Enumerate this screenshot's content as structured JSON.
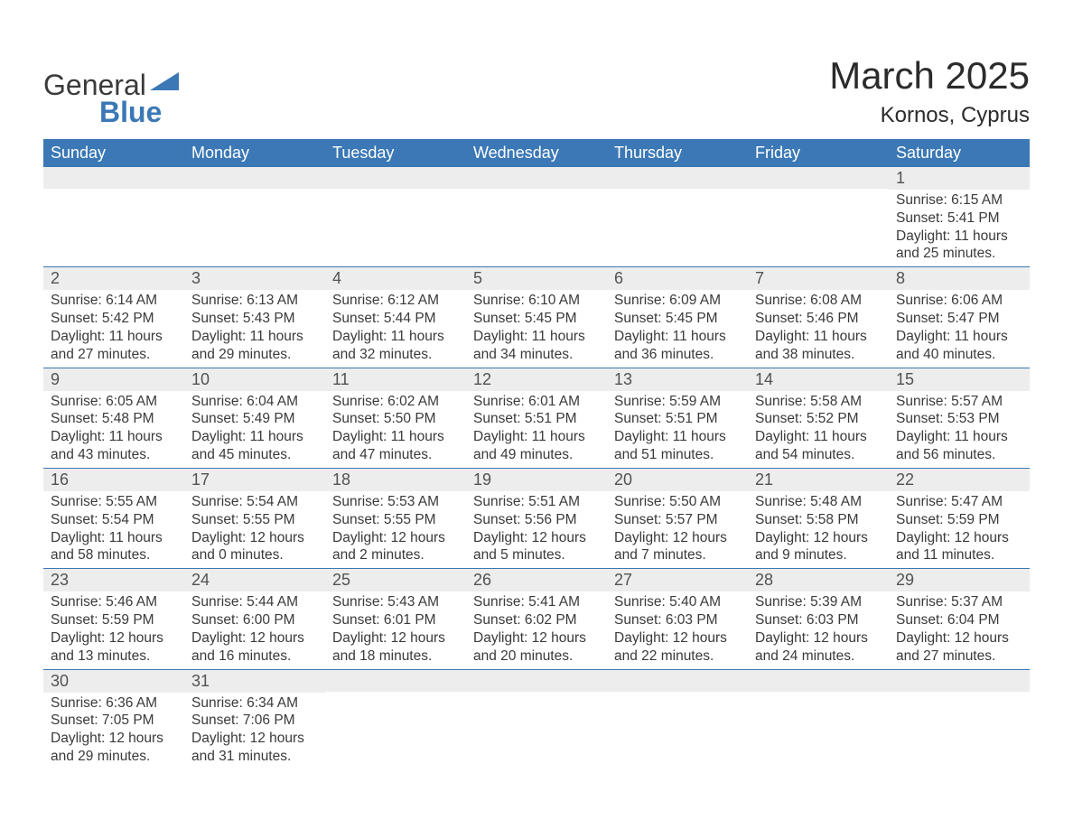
{
  "logo": {
    "text_general": "General",
    "text_blue": "Blue",
    "triangle_color": "#3b78b5"
  },
  "header": {
    "title": "March 2025",
    "subtitle": "Kornos, Cyprus"
  },
  "colors": {
    "header_bg": "#3b78b5",
    "header_fg": "#ffffff",
    "daynum_bg": "#ededed",
    "row_border": "#3b78b5",
    "text": "#3a3a3a",
    "background": "#ffffff"
  },
  "fonts": {
    "family": "Arial",
    "title_size": 42,
    "subtitle_size": 24,
    "dayhead_size": 18,
    "daynum_size": 18,
    "body_size": 15.5
  },
  "calendar": {
    "type": "calendar-table",
    "columns": [
      "Sunday",
      "Monday",
      "Tuesday",
      "Wednesday",
      "Thursday",
      "Friday",
      "Saturday"
    ],
    "weeks": [
      [
        {
          "day": "",
          "sunrise": "",
          "sunset": "",
          "daylight": ""
        },
        {
          "day": "",
          "sunrise": "",
          "sunset": "",
          "daylight": ""
        },
        {
          "day": "",
          "sunrise": "",
          "sunset": "",
          "daylight": ""
        },
        {
          "day": "",
          "sunrise": "",
          "sunset": "",
          "daylight": ""
        },
        {
          "day": "",
          "sunrise": "",
          "sunset": "",
          "daylight": ""
        },
        {
          "day": "",
          "sunrise": "",
          "sunset": "",
          "daylight": ""
        },
        {
          "day": "1",
          "sunrise": "Sunrise: 6:15 AM",
          "sunset": "Sunset: 5:41 PM",
          "daylight": "Daylight: 11 hours and 25 minutes."
        }
      ],
      [
        {
          "day": "2",
          "sunrise": "Sunrise: 6:14 AM",
          "sunset": "Sunset: 5:42 PM",
          "daylight": "Daylight: 11 hours and 27 minutes."
        },
        {
          "day": "3",
          "sunrise": "Sunrise: 6:13 AM",
          "sunset": "Sunset: 5:43 PM",
          "daylight": "Daylight: 11 hours and 29 minutes."
        },
        {
          "day": "4",
          "sunrise": "Sunrise: 6:12 AM",
          "sunset": "Sunset: 5:44 PM",
          "daylight": "Daylight: 11 hours and 32 minutes."
        },
        {
          "day": "5",
          "sunrise": "Sunrise: 6:10 AM",
          "sunset": "Sunset: 5:45 PM",
          "daylight": "Daylight: 11 hours and 34 minutes."
        },
        {
          "day": "6",
          "sunrise": "Sunrise: 6:09 AM",
          "sunset": "Sunset: 5:45 PM",
          "daylight": "Daylight: 11 hours and 36 minutes."
        },
        {
          "day": "7",
          "sunrise": "Sunrise: 6:08 AM",
          "sunset": "Sunset: 5:46 PM",
          "daylight": "Daylight: 11 hours and 38 minutes."
        },
        {
          "day": "8",
          "sunrise": "Sunrise: 6:06 AM",
          "sunset": "Sunset: 5:47 PM",
          "daylight": "Daylight: 11 hours and 40 minutes."
        }
      ],
      [
        {
          "day": "9",
          "sunrise": "Sunrise: 6:05 AM",
          "sunset": "Sunset: 5:48 PM",
          "daylight": "Daylight: 11 hours and 43 minutes."
        },
        {
          "day": "10",
          "sunrise": "Sunrise: 6:04 AM",
          "sunset": "Sunset: 5:49 PM",
          "daylight": "Daylight: 11 hours and 45 minutes."
        },
        {
          "day": "11",
          "sunrise": "Sunrise: 6:02 AM",
          "sunset": "Sunset: 5:50 PM",
          "daylight": "Daylight: 11 hours and 47 minutes."
        },
        {
          "day": "12",
          "sunrise": "Sunrise: 6:01 AM",
          "sunset": "Sunset: 5:51 PM",
          "daylight": "Daylight: 11 hours and 49 minutes."
        },
        {
          "day": "13",
          "sunrise": "Sunrise: 5:59 AM",
          "sunset": "Sunset: 5:51 PM",
          "daylight": "Daylight: 11 hours and 51 minutes."
        },
        {
          "day": "14",
          "sunrise": "Sunrise: 5:58 AM",
          "sunset": "Sunset: 5:52 PM",
          "daylight": "Daylight: 11 hours and 54 minutes."
        },
        {
          "day": "15",
          "sunrise": "Sunrise: 5:57 AM",
          "sunset": "Sunset: 5:53 PM",
          "daylight": "Daylight: 11 hours and 56 minutes."
        }
      ],
      [
        {
          "day": "16",
          "sunrise": "Sunrise: 5:55 AM",
          "sunset": "Sunset: 5:54 PM",
          "daylight": "Daylight: 11 hours and 58 minutes."
        },
        {
          "day": "17",
          "sunrise": "Sunrise: 5:54 AM",
          "sunset": "Sunset: 5:55 PM",
          "daylight": "Daylight: 12 hours and 0 minutes."
        },
        {
          "day": "18",
          "sunrise": "Sunrise: 5:53 AM",
          "sunset": "Sunset: 5:55 PM",
          "daylight": "Daylight: 12 hours and 2 minutes."
        },
        {
          "day": "19",
          "sunrise": "Sunrise: 5:51 AM",
          "sunset": "Sunset: 5:56 PM",
          "daylight": "Daylight: 12 hours and 5 minutes."
        },
        {
          "day": "20",
          "sunrise": "Sunrise: 5:50 AM",
          "sunset": "Sunset: 5:57 PM",
          "daylight": "Daylight: 12 hours and 7 minutes."
        },
        {
          "day": "21",
          "sunrise": "Sunrise: 5:48 AM",
          "sunset": "Sunset: 5:58 PM",
          "daylight": "Daylight: 12 hours and 9 minutes."
        },
        {
          "day": "22",
          "sunrise": "Sunrise: 5:47 AM",
          "sunset": "Sunset: 5:59 PM",
          "daylight": "Daylight: 12 hours and 11 minutes."
        }
      ],
      [
        {
          "day": "23",
          "sunrise": "Sunrise: 5:46 AM",
          "sunset": "Sunset: 5:59 PM",
          "daylight": "Daylight: 12 hours and 13 minutes."
        },
        {
          "day": "24",
          "sunrise": "Sunrise: 5:44 AM",
          "sunset": "Sunset: 6:00 PM",
          "daylight": "Daylight: 12 hours and 16 minutes."
        },
        {
          "day": "25",
          "sunrise": "Sunrise: 5:43 AM",
          "sunset": "Sunset: 6:01 PM",
          "daylight": "Daylight: 12 hours and 18 minutes."
        },
        {
          "day": "26",
          "sunrise": "Sunrise: 5:41 AM",
          "sunset": "Sunset: 6:02 PM",
          "daylight": "Daylight: 12 hours and 20 minutes."
        },
        {
          "day": "27",
          "sunrise": "Sunrise: 5:40 AM",
          "sunset": "Sunset: 6:03 PM",
          "daylight": "Daylight: 12 hours and 22 minutes."
        },
        {
          "day": "28",
          "sunrise": "Sunrise: 5:39 AM",
          "sunset": "Sunset: 6:03 PM",
          "daylight": "Daylight: 12 hours and 24 minutes."
        },
        {
          "day": "29",
          "sunrise": "Sunrise: 5:37 AM",
          "sunset": "Sunset: 6:04 PM",
          "daylight": "Daylight: 12 hours and 27 minutes."
        }
      ],
      [
        {
          "day": "30",
          "sunrise": "Sunrise: 6:36 AM",
          "sunset": "Sunset: 7:05 PM",
          "daylight": "Daylight: 12 hours and 29 minutes."
        },
        {
          "day": "31",
          "sunrise": "Sunrise: 6:34 AM",
          "sunset": "Sunset: 7:06 PM",
          "daylight": "Daylight: 12 hours and 31 minutes."
        },
        {
          "day": "",
          "sunrise": "",
          "sunset": "",
          "daylight": ""
        },
        {
          "day": "",
          "sunrise": "",
          "sunset": "",
          "daylight": ""
        },
        {
          "day": "",
          "sunrise": "",
          "sunset": "",
          "daylight": ""
        },
        {
          "day": "",
          "sunrise": "",
          "sunset": "",
          "daylight": ""
        },
        {
          "day": "",
          "sunrise": "",
          "sunset": "",
          "daylight": ""
        }
      ]
    ]
  }
}
